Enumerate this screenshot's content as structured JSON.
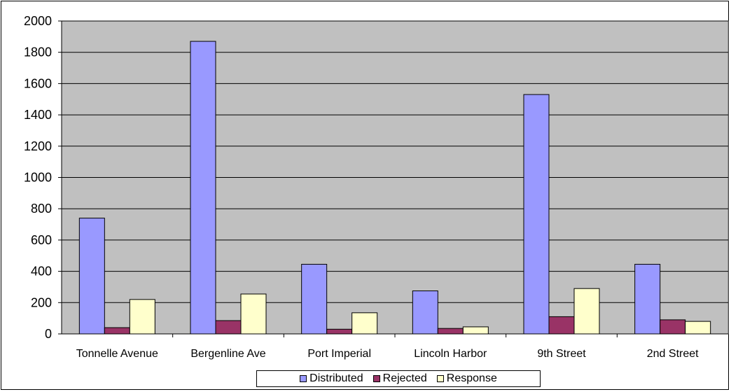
{
  "chart_data": {
    "type": "bar",
    "categories": [
      "Tonnelle Avenue",
      "Bergenline Ave",
      "Port Imperial",
      "Lincoln Harbor",
      "9th Street",
      "2nd Street"
    ],
    "series": [
      {
        "name": "Distributed",
        "color": "#9999ff",
        "values": [
          740,
          1870,
          445,
          275,
          1530,
          445
        ]
      },
      {
        "name": "Rejected",
        "color": "#993366",
        "values": [
          40,
          85,
          30,
          35,
          110,
          90
        ]
      },
      {
        "name": "Response",
        "color": "#ffffcc",
        "values": [
          220,
          255,
          135,
          45,
          290,
          80
        ]
      }
    ],
    "ylim": [
      0,
      2000
    ],
    "yticks": [
      0,
      200,
      400,
      600,
      800,
      1000,
      1200,
      1400,
      1600,
      1800,
      2000
    ],
    "grid": true,
    "plot_background": "#c0c0c0",
    "legend_position": "bottom",
    "title": "",
    "xlabel": "",
    "ylabel": ""
  }
}
